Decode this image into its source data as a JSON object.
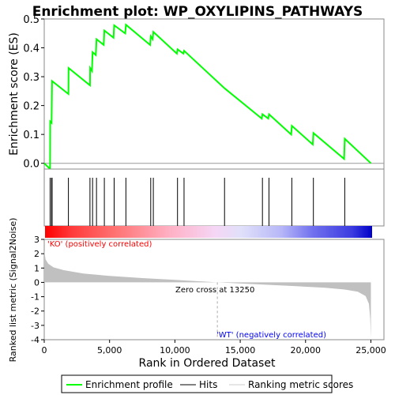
{
  "chart_data": {
    "type": "line",
    "title": "Enrichment plot: WP_OXYLIPINS_PATHWAYS",
    "es_panel": {
      "ylabel": "Enrichment score (ES)",
      "ylim": [
        -0.02,
        0.5
      ],
      "yticks": [
        "0.0",
        "0.1",
        "0.2",
        "0.3",
        "0.4",
        "0.5"
      ],
      "series_color": "#00ff00",
      "points": [
        [
          0,
          0.0
        ],
        [
          450,
          -0.02
        ],
        [
          460,
          0.145
        ],
        [
          560,
          0.14
        ],
        [
          600,
          0.285
        ],
        [
          1850,
          0.24
        ],
        [
          1860,
          0.33
        ],
        [
          3500,
          0.27
        ],
        [
          3510,
          0.33
        ],
        [
          3650,
          0.32
        ],
        [
          3700,
          0.385
        ],
        [
          3950,
          0.375
        ],
        [
          4000,
          0.43
        ],
        [
          4550,
          0.41
        ],
        [
          4600,
          0.46
        ],
        [
          5300,
          0.435
        ],
        [
          5350,
          0.478
        ],
        [
          6200,
          0.45
        ],
        [
          6250,
          0.48
        ],
        [
          8100,
          0.41
        ],
        [
          8150,
          0.44
        ],
        [
          8300,
          0.43
        ],
        [
          8350,
          0.455
        ],
        [
          10150,
          0.38
        ],
        [
          10200,
          0.395
        ],
        [
          10650,
          0.38
        ],
        [
          10700,
          0.39
        ],
        [
          13800,
          0.26
        ],
        [
          16650,
          0.155
        ],
        [
          16700,
          0.17
        ],
        [
          17150,
          0.155
        ],
        [
          17200,
          0.17
        ],
        [
          18900,
          0.1
        ],
        [
          18950,
          0.13
        ],
        [
          20550,
          0.065
        ],
        [
          20600,
          0.105
        ],
        [
          22950,
          0.015
        ],
        [
          23000,
          0.085
        ],
        [
          25000,
          0.0
        ]
      ]
    },
    "hits": [
      450,
      560,
      600,
      1850,
      3500,
      3700,
      4000,
      4600,
      5350,
      6250,
      8150,
      8350,
      10200,
      10700,
      13800,
      16700,
      17200,
      18950,
      20600,
      23000
    ],
    "metric_panel": {
      "ylabel": "Ranked list metric (Signal2Noise)",
      "ylim": [
        -4,
        3
      ],
      "yticks": [
        "-4",
        "-3",
        "-2",
        "-1",
        "0",
        "1",
        "2",
        "3"
      ],
      "fill_color": "#c0c0c0",
      "profile": [
        [
          0,
          2.2
        ],
        [
          100,
          1.6
        ],
        [
          300,
          1.3
        ],
        [
          700,
          1.05
        ],
        [
          1500,
          0.85
        ],
        [
          3000,
          0.62
        ],
        [
          5000,
          0.45
        ],
        [
          7500,
          0.3
        ],
        [
          10000,
          0.18
        ],
        [
          13250,
          0.0
        ],
        [
          16000,
          -0.12
        ],
        [
          19000,
          -0.25
        ],
        [
          21500,
          -0.38
        ],
        [
          23000,
          -0.5
        ],
        [
          24000,
          -0.65
        ],
        [
          24600,
          -0.95
        ],
        [
          24850,
          -1.5
        ],
        [
          24950,
          -2.5
        ],
        [
          25000,
          -3.9
        ]
      ]
    },
    "x_axis": {
      "label": "Rank in Ordered Dataset",
      "xlim": [
        0,
        26000
      ],
      "xticks": [
        "0",
        "5,000",
        "10,000",
        "15,000",
        "20,000",
        "25,000"
      ]
    },
    "annotations": {
      "positive": "'KO' (positively correlated)",
      "negative": "'WT' (negatively correlated)",
      "zero_cross": "Zero cross at 13250",
      "zero_cross_rank": 13250
    },
    "legend": {
      "placement": "bottom",
      "items": [
        "Enrichment profile",
        "Hits",
        "Ranking metric scores"
      ]
    }
  }
}
